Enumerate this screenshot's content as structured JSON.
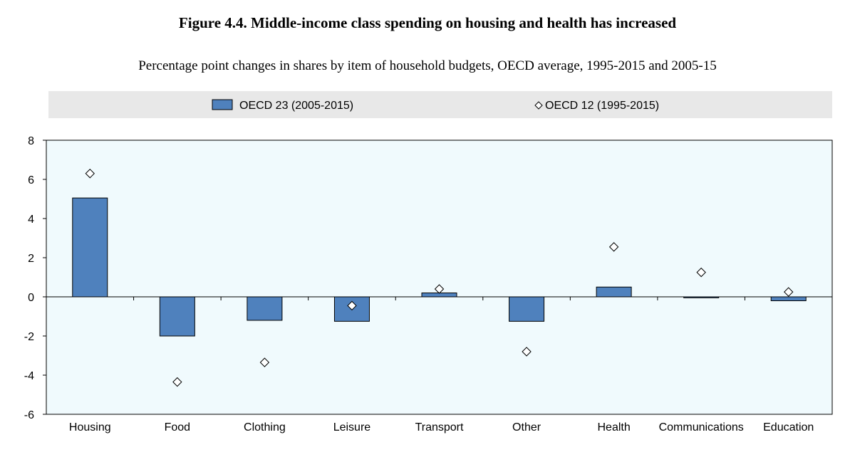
{
  "title": "Figure 4.4. Middle-income class spending on housing and health has increased",
  "subtitle": "Percentage point changes in shares by item of household budgets, OECD average, 1995-2015 and 2005-15",
  "chart_data": {
    "type": "bar",
    "categories": [
      "Housing",
      "Food",
      "Clothing",
      "Leisure",
      "Transport",
      "Other",
      "Health",
      "Communications",
      "Education"
    ],
    "series": [
      {
        "name": "OECD 23 (2005-2015)",
        "kind": "bar",
        "color": "#4f81bd",
        "values": [
          5.05,
          -2.0,
          -1.2,
          -1.25,
          0.2,
          -1.25,
          0.5,
          -0.05,
          -0.2
        ]
      },
      {
        "name": "OECD 12 (1995-2015)",
        "kind": "marker",
        "marker": "diamond",
        "values": [
          6.3,
          -4.35,
          -3.35,
          -0.45,
          0.4,
          -2.8,
          2.55,
          1.25,
          0.25
        ]
      }
    ],
    "ylim": [
      -6,
      8
    ],
    "yticks": [
      "8",
      "6",
      "4",
      "2",
      "0",
      "-2",
      "-4",
      "-6"
    ],
    "ytick_values": [
      8,
      6,
      4,
      2,
      0,
      -2,
      -4,
      -6
    ],
    "legend_position": "top",
    "grid": false,
    "plot_background": "#f0fafd",
    "legend_background": "#e8e8e8"
  }
}
